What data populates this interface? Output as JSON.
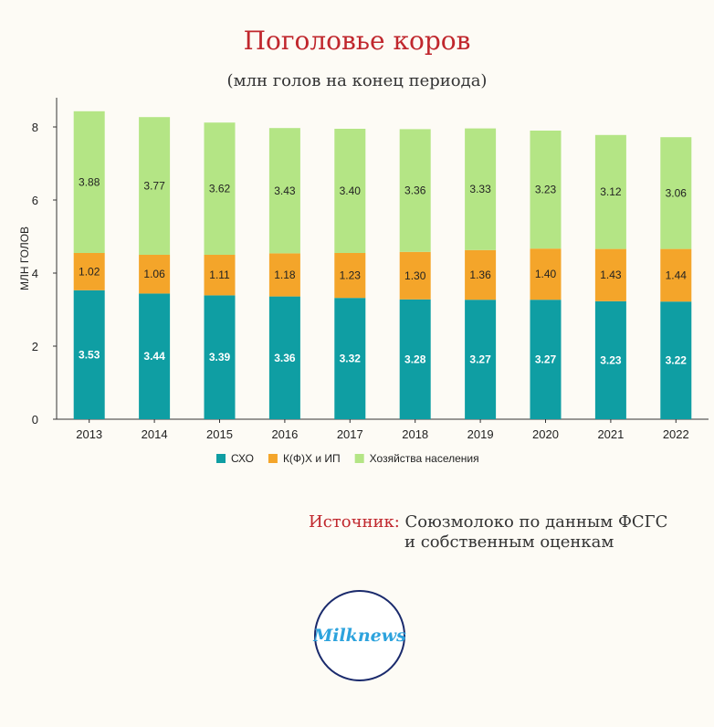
{
  "chart_data": {
    "type": "bar",
    "stacked": true,
    "title": "Поголовье коров",
    "subtitle": "(млн голов на конец периода)",
    "ylabel": "МЛН ГОЛОВ",
    "xlabel": "",
    "ylim": [
      0,
      8.8
    ],
    "yticks": [
      0,
      2,
      4,
      6,
      8
    ],
    "grid": false,
    "legend_position": "bottom",
    "categories": [
      "2013",
      "2014",
      "2015",
      "2016",
      "2017",
      "2018",
      "2019",
      "2020",
      "2021",
      "2022"
    ],
    "series": [
      {
        "name": "СХО",
        "color": "#0f9ea3",
        "label_color": "#ffffff",
        "values": [
          3.53,
          3.44,
          3.39,
          3.36,
          3.32,
          3.28,
          3.27,
          3.27,
          3.23,
          3.22
        ]
      },
      {
        "name": "К(Ф)Х и ИП",
        "color": "#f4a52a",
        "label_color": "#222222",
        "values": [
          1.02,
          1.06,
          1.11,
          1.18,
          1.23,
          1.3,
          1.36,
          1.4,
          1.43,
          1.44
        ]
      },
      {
        "name": "Хозяйства населения",
        "color": "#b4e585",
        "label_color": "#222222",
        "values": [
          3.88,
          3.77,
          3.62,
          3.43,
          3.4,
          3.36,
          3.33,
          3.23,
          3.12,
          3.06
        ]
      }
    ]
  },
  "source": {
    "label": "Источник:",
    "line1": " Союзмолоко по данным ФСГС",
    "line2": "и собственным оценкам"
  },
  "logo": {
    "text": "Milknews",
    "icon": "milknews-logo-icon"
  }
}
